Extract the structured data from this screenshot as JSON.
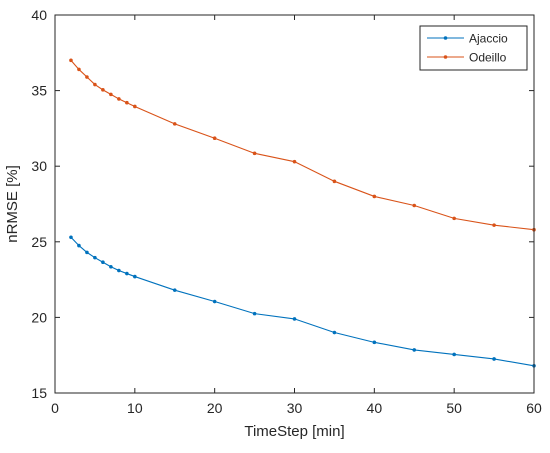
{
  "chart_data": {
    "type": "line",
    "title": "",
    "xlabel": "TimeStep [min]",
    "ylabel": "nRMSE [%]",
    "xlim": [
      0,
      60
    ],
    "ylim": [
      15,
      40
    ],
    "xticks": [
      0,
      10,
      20,
      30,
      40,
      50,
      60
    ],
    "yticks": [
      15,
      20,
      25,
      30,
      35,
      40
    ],
    "grid": false,
    "legend_position": "top-right",
    "x": [
      2,
      3,
      4,
      5,
      6,
      7,
      8,
      9,
      10,
      15,
      20,
      25,
      30,
      35,
      40,
      45,
      50,
      55,
      60
    ],
    "series": [
      {
        "name": "Ajaccio",
        "color": "#0072BD",
        "values": [
          25.3,
          24.75,
          24.3,
          23.95,
          23.65,
          23.35,
          23.1,
          22.9,
          22.7,
          21.8,
          21.05,
          20.25,
          19.9,
          19.0,
          18.35,
          17.85,
          17.55,
          17.25,
          16.8
        ]
      },
      {
        "name": "Odeillo",
        "color": "#D95319",
        "values": [
          37.0,
          36.4,
          35.9,
          35.4,
          35.05,
          34.75,
          34.45,
          34.2,
          33.95,
          32.8,
          31.85,
          30.85,
          30.3,
          29.0,
          28.0,
          27.4,
          26.55,
          26.1,
          25.8
        ]
      }
    ]
  }
}
